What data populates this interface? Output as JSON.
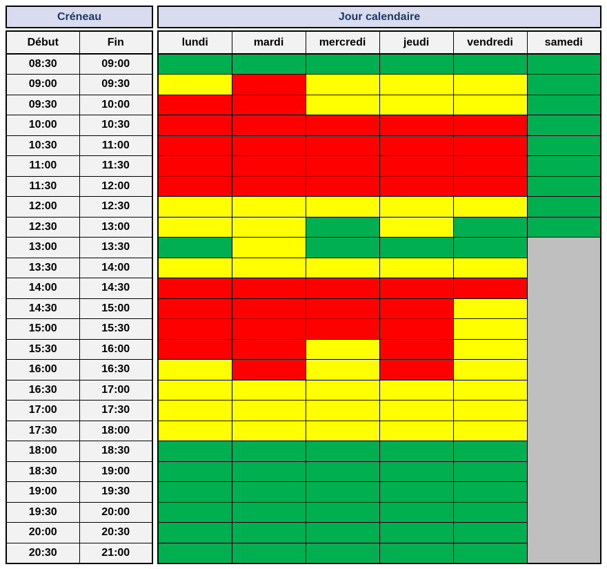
{
  "title_row": {
    "creneau": "Créneau",
    "jour_calendaire": "Jour calendaire"
  },
  "column_headers": {
    "debut": "Début",
    "fin": "Fin"
  },
  "colors": {
    "header_bg": "#D9DBEF",
    "header_text": "#1F3864",
    "subheader_bg": "#F2F2F2",
    "border": "#000000"
  },
  "chart_data": {
    "type": "heatmap",
    "title": "Créneau / Jour calendaire availability grid",
    "columns": [
      "lundi",
      "mardi",
      "mercredi",
      "jeudi",
      "vendredi",
      "samedi"
    ],
    "state_colors": {
      "green": "#00B050",
      "yellow": "#FFFF00",
      "red": "#FF0000",
      "gray": "#BFBFBF"
    },
    "rows": [
      {
        "debut": "08:30",
        "fin": "09:00",
        "states": [
          "green",
          "green",
          "green",
          "green",
          "green",
          "green"
        ]
      },
      {
        "debut": "09:00",
        "fin": "09:30",
        "states": [
          "yellow",
          "red",
          "yellow",
          "yellow",
          "yellow",
          "green"
        ]
      },
      {
        "debut": "09:30",
        "fin": "10:00",
        "states": [
          "red",
          "red",
          "yellow",
          "yellow",
          "yellow",
          "green"
        ]
      },
      {
        "debut": "10:00",
        "fin": "10:30",
        "states": [
          "red",
          "red",
          "red",
          "red",
          "red",
          "green"
        ]
      },
      {
        "debut": "10:30",
        "fin": "11:00",
        "states": [
          "red",
          "red",
          "red",
          "red",
          "red",
          "green"
        ]
      },
      {
        "debut": "11:00",
        "fin": "11:30",
        "states": [
          "red",
          "red",
          "red",
          "red",
          "red",
          "green"
        ]
      },
      {
        "debut": "11:30",
        "fin": "12:00",
        "states": [
          "red",
          "red",
          "red",
          "red",
          "red",
          "green"
        ]
      },
      {
        "debut": "12:00",
        "fin": "12:30",
        "states": [
          "yellow",
          "yellow",
          "yellow",
          "yellow",
          "yellow",
          "green"
        ]
      },
      {
        "debut": "12:30",
        "fin": "13:00",
        "states": [
          "yellow",
          "yellow",
          "green",
          "yellow",
          "green",
          "green"
        ]
      },
      {
        "debut": "13:00",
        "fin": "13:30",
        "states": [
          "green",
          "yellow",
          "green",
          "green",
          "green",
          "gray"
        ]
      },
      {
        "debut": "13:30",
        "fin": "14:00",
        "states": [
          "yellow",
          "yellow",
          "yellow",
          "yellow",
          "yellow",
          "gray"
        ]
      },
      {
        "debut": "14:00",
        "fin": "14:30",
        "states": [
          "red",
          "red",
          "red",
          "red",
          "red",
          "gray"
        ]
      },
      {
        "debut": "14:30",
        "fin": "15:00",
        "states": [
          "red",
          "red",
          "red",
          "red",
          "yellow",
          "gray"
        ]
      },
      {
        "debut": "15:00",
        "fin": "15:30",
        "states": [
          "red",
          "red",
          "red",
          "red",
          "yellow",
          "gray"
        ]
      },
      {
        "debut": "15:30",
        "fin": "16:00",
        "states": [
          "red",
          "red",
          "yellow",
          "red",
          "yellow",
          "gray"
        ]
      },
      {
        "debut": "16:00",
        "fin": "16:30",
        "states": [
          "yellow",
          "red",
          "yellow",
          "red",
          "yellow",
          "gray"
        ]
      },
      {
        "debut": "16:30",
        "fin": "17:00",
        "states": [
          "yellow",
          "yellow",
          "yellow",
          "yellow",
          "yellow",
          "gray"
        ]
      },
      {
        "debut": "17:00",
        "fin": "17:30",
        "states": [
          "yellow",
          "yellow",
          "yellow",
          "yellow",
          "yellow",
          "gray"
        ]
      },
      {
        "debut": "17:30",
        "fin": "18:00",
        "states": [
          "yellow",
          "yellow",
          "yellow",
          "yellow",
          "yellow",
          "gray"
        ]
      },
      {
        "debut": "18:00",
        "fin": "18:30",
        "states": [
          "green",
          "green",
          "green",
          "green",
          "green",
          "gray"
        ]
      },
      {
        "debut": "18:30",
        "fin": "19:00",
        "states": [
          "green",
          "green",
          "green",
          "green",
          "green",
          "gray"
        ]
      },
      {
        "debut": "19:00",
        "fin": "19:30",
        "states": [
          "green",
          "green",
          "green",
          "green",
          "green",
          "gray"
        ]
      },
      {
        "debut": "19:30",
        "fin": "20:00",
        "states": [
          "green",
          "green",
          "green",
          "green",
          "green",
          "gray"
        ]
      },
      {
        "debut": "20:00",
        "fin": "20:30",
        "states": [
          "green",
          "green",
          "green",
          "green",
          "green",
          "gray"
        ]
      },
      {
        "debut": "20:30",
        "fin": "21:00",
        "states": [
          "green",
          "green",
          "green",
          "green",
          "green",
          "gray"
        ]
      }
    ]
  }
}
